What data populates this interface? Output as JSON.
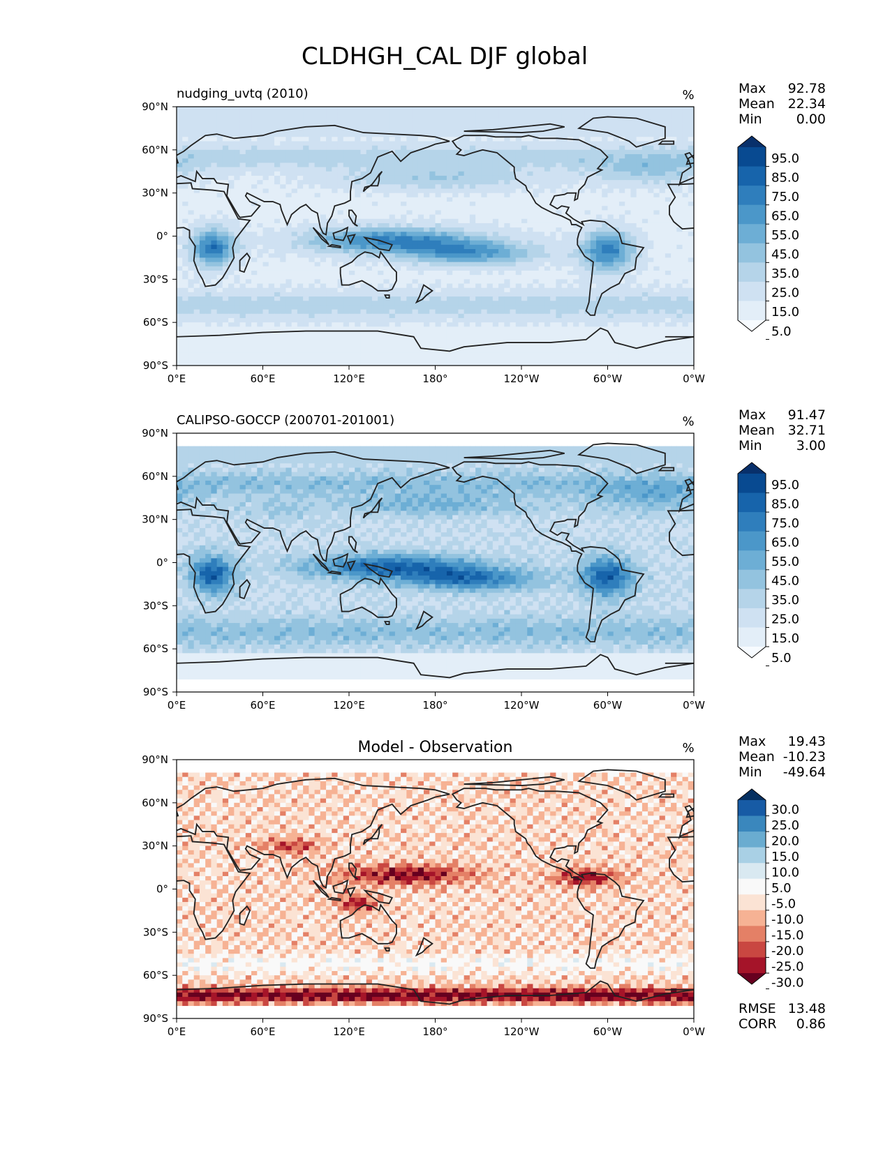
{
  "figure_title": "CLDHGH_CAL DJF global",
  "colors": {
    "blues": [
      "#f7fbff",
      "#e3eef8",
      "#cfe1f2",
      "#b5d4e9",
      "#93c3df",
      "#6daed5",
      "#4b97c9",
      "#2f7ebc",
      "#1764ab",
      "#084a91",
      "#08306b"
    ],
    "diff": [
      "#67001f",
      "#a51429",
      "#c94741",
      "#e48066",
      "#f6b294",
      "#fbe3d4",
      "#f9f9f9",
      "#d9e9f1",
      "#a9d0e5",
      "#6aacd0",
      "#3a87bd",
      "#175ba5",
      "#053061"
    ],
    "coast": "#222222"
  },
  "chart_data": [
    {
      "type": "contour-map",
      "name": "test",
      "title": "nudging_uvtq (2010)",
      "units": "%",
      "stats": [
        {
          "label": "Max",
          "value": "92.78"
        },
        {
          "label": "Mean",
          "value": "22.34"
        },
        {
          "label": "Min",
          "value": "0.00"
        }
      ],
      "colorbar_levels": [
        "95.0",
        "85.0",
        "75.0",
        "65.0",
        "55.0",
        "45.0",
        "35.0",
        "25.0",
        "15.0",
        "5.0"
      ],
      "colormap": "blues",
      "xticks": [
        "0°E",
        "60°E",
        "120°E",
        "180°",
        "120°W",
        "60°W",
        "0°W"
      ],
      "yticks": [
        "90°N",
        "60°N",
        "30°N",
        "0°",
        "30°S",
        "60°S",
        "90°S"
      ],
      "xlim": [
        0,
        360
      ],
      "ylim": [
        -90,
        90
      ]
    },
    {
      "type": "contour-map",
      "name": "reference",
      "title": "CALIPSO-GOCCP (200701-201001)",
      "units": "%",
      "stats": [
        {
          "label": "Max",
          "value": "91.47"
        },
        {
          "label": "Mean",
          "value": "32.71"
        },
        {
          "label": "Min",
          "value": "3.00"
        }
      ],
      "colorbar_levels": [
        "95.0",
        "85.0",
        "75.0",
        "65.0",
        "55.0",
        "45.0",
        "35.0",
        "25.0",
        "15.0",
        "5.0"
      ],
      "colormap": "blues",
      "xticks": [
        "0°E",
        "60°E",
        "120°E",
        "180°",
        "120°W",
        "60°W",
        "0°W"
      ],
      "yticks": [
        "90°N",
        "60°N",
        "30°N",
        "0°",
        "30°S",
        "60°S",
        "90°S"
      ],
      "xlim": [
        0,
        360
      ],
      "ylim": [
        -90,
        90
      ]
    },
    {
      "type": "contour-map",
      "name": "difference",
      "title": "Model - Observation",
      "units": "%",
      "stats": [
        {
          "label": "Max",
          "value": "19.43"
        },
        {
          "label": "Mean",
          "value": "-10.23"
        },
        {
          "label": "Min",
          "value": "-49.64"
        }
      ],
      "metrics": [
        {
          "label": "RMSE",
          "value": "13.48"
        },
        {
          "label": "CORR",
          "value": "0.86"
        }
      ],
      "colorbar_levels": [
        "30.0",
        "25.0",
        "20.0",
        "15.0",
        "10.0",
        "5.0",
        "-5.0",
        "-10.0",
        "-15.0",
        "-20.0",
        "-25.0",
        "-30.0"
      ],
      "colormap": "diff",
      "xticks": [
        "0°E",
        "60°E",
        "120°E",
        "180°",
        "120°W",
        "60°W",
        "0°W"
      ],
      "yticks": [
        "90°N",
        "60°N",
        "30°N",
        "0°",
        "30°S",
        "60°S",
        "90°S"
      ],
      "xlim": [
        0,
        360
      ],
      "ylim": [
        -90,
        90
      ]
    }
  ]
}
